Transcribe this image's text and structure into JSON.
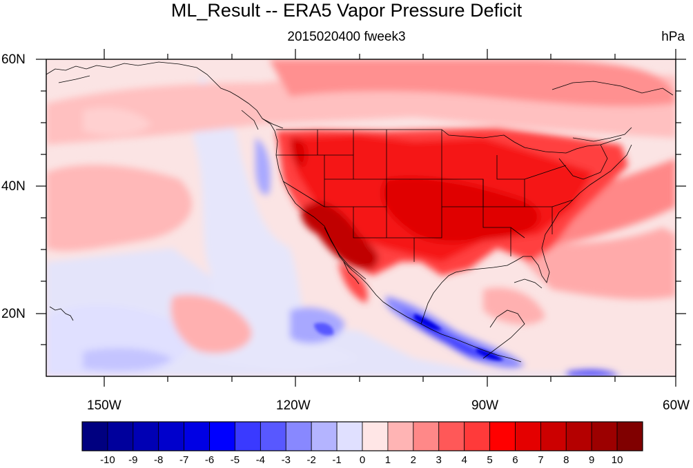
{
  "map": {
    "title": "ML_Result -- ERA5 Vapor Pressure Deficit",
    "subtitle": "2015020400 fweek3",
    "units": "hPa",
    "lat_labels": [
      "60N",
      "40N",
      "20N"
    ],
    "lon_labels": [
      "150W",
      "120W",
      "90W",
      "60W"
    ],
    "extent": {
      "lon_min": -159,
      "lon_max": -60,
      "lat_min": 10,
      "lat_max": 60
    },
    "projection": "cylindrical-equidistant",
    "colorbar": {
      "labels": [
        "-10",
        "-9",
        "-8",
        "-7",
        "-6",
        "-5",
        "-4",
        "-3",
        "-2",
        "-1",
        "0",
        "1",
        "2",
        "3",
        "4",
        "5",
        "6",
        "7",
        "8",
        "9",
        "10"
      ],
      "colors": [
        "#000080",
        "#00009c",
        "#0000b4",
        "#0000cc",
        "#0000e4",
        "#0000ff",
        "#3a3aff",
        "#5858ff",
        "#8888ff",
        "#b4b4ff",
        "#e0e0ff",
        "#ffe6e6",
        "#ffb4b4",
        "#ff8888",
        "#ff5858",
        "#ff3a3a",
        "#ff0000",
        "#e40000",
        "#cc0000",
        "#b40000",
        "#9c0000",
        "#800000"
      ]
    },
    "colors": {
      "ocean_neutral": "#fbe4e4",
      "land_hot": "#f01010",
      "cool": "#8888ff"
    }
  }
}
